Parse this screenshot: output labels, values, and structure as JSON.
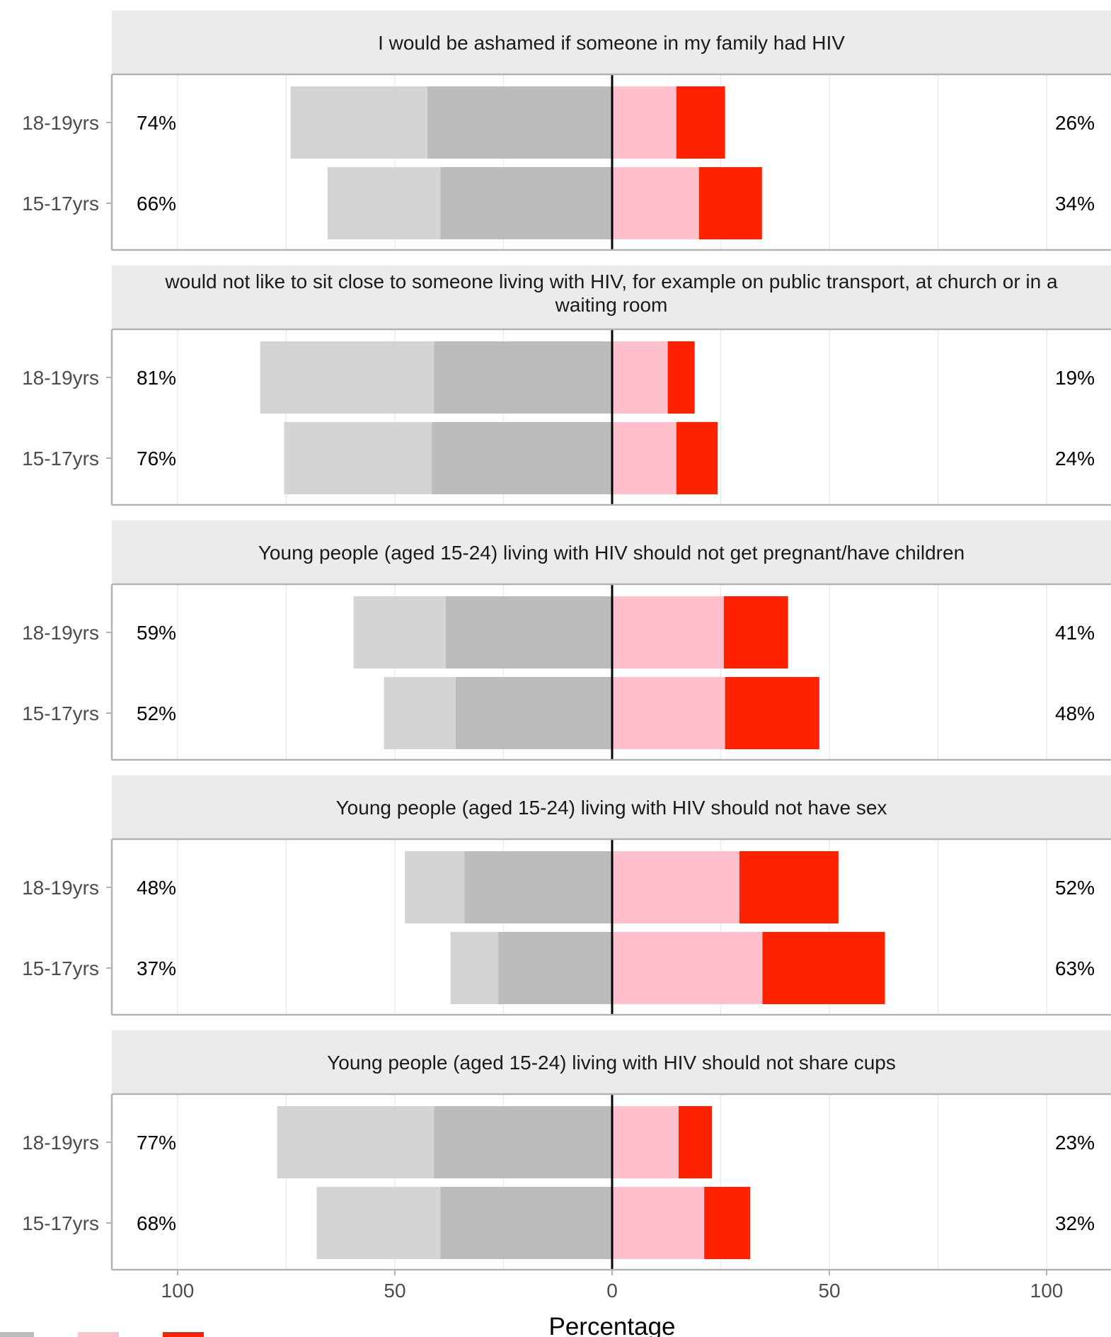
{
  "chart_data": {
    "type": "bar",
    "orientation": "horizontal diverging stacked",
    "xlabel": "Percentage",
    "xlim": [
      -115,
      115
    ],
    "x_ticks": [
      -100,
      -50,
      0,
      50,
      100
    ],
    "x_tick_labels": [
      "100",
      "50",
      "0",
      "50",
      "100"
    ],
    "categories": [
      "18-19yrs",
      "15-17yrs"
    ],
    "segment_colors": {
      "neg_outer": "#d4d4d4",
      "neg_inner": "#bcbcbc",
      "pos_inner": "#ffc0cb",
      "pos_outer": "#ff2200"
    },
    "grid": true,
    "panels": [
      {
        "title": "I would be ashamed if someone in my family had HIV",
        "rows": [
          {
            "category": "18-19yrs",
            "neg_outer": 31.5,
            "neg_inner": 42.5,
            "pos_inner": 14.8,
            "pos_outer": 11.2,
            "left_label": "74%",
            "right_label": "26%"
          },
          {
            "category": "15-17yrs",
            "neg_outer": 26.0,
            "neg_inner": 39.5,
            "pos_inner": 20.0,
            "pos_outer": 14.5,
            "left_label": "66%",
            "right_label": "34%"
          }
        ]
      },
      {
        "title": "would not like to sit close to someone living with HIV, for example on public transport, at church or in a waiting room",
        "rows": [
          {
            "category": "18-19yrs",
            "neg_outer": 40.0,
            "neg_inner": 41.0,
            "pos_inner": 12.8,
            "pos_outer": 6.2,
            "left_label": "81%",
            "right_label": "19%"
          },
          {
            "category": "15-17yrs",
            "neg_outer": 34.0,
            "neg_inner": 41.5,
            "pos_inner": 14.8,
            "pos_outer": 9.5,
            "left_label": "76%",
            "right_label": "24%"
          }
        ]
      },
      {
        "title": "Young people (aged 15-24) living with HIV should not get pregnant/have children",
        "rows": [
          {
            "category": "18-19yrs",
            "neg_outer": 21.2,
            "neg_inner": 38.3,
            "pos_inner": 25.7,
            "pos_outer": 14.8,
            "left_label": "59%",
            "right_label": "41%"
          },
          {
            "category": "15-17yrs",
            "neg_outer": 16.5,
            "neg_inner": 36.0,
            "pos_inner": 26.0,
            "pos_outer": 21.7,
            "left_label": "52%",
            "right_label": "48%"
          }
        ]
      },
      {
        "title": "Young people (aged 15-24) living with HIV should not have sex",
        "rows": [
          {
            "category": "18-19yrs",
            "neg_outer": 13.7,
            "neg_inner": 34.0,
            "pos_inner": 29.3,
            "pos_outer": 22.8,
            "left_label": "48%",
            "right_label": "52%"
          },
          {
            "category": "15-17yrs",
            "neg_outer": 11.0,
            "neg_inner": 26.2,
            "pos_inner": 34.6,
            "pos_outer": 28.2,
            "left_label": "37%",
            "right_label": "63%"
          }
        ]
      },
      {
        "title": "Young people (aged 15-24) living with HIV should not share cups",
        "rows": [
          {
            "category": "18-19yrs",
            "neg_outer": 36.1,
            "neg_inner": 41.0,
            "pos_inner": 15.3,
            "pos_outer": 7.7,
            "left_label": "77%",
            "right_label": "23%"
          },
          {
            "category": "15-17yrs",
            "neg_outer": 28.5,
            "neg_inner": 39.5,
            "pos_inner": 21.2,
            "pos_outer": 10.6,
            "left_label": "68%",
            "right_label": "32%"
          }
        ]
      }
    ]
  }
}
